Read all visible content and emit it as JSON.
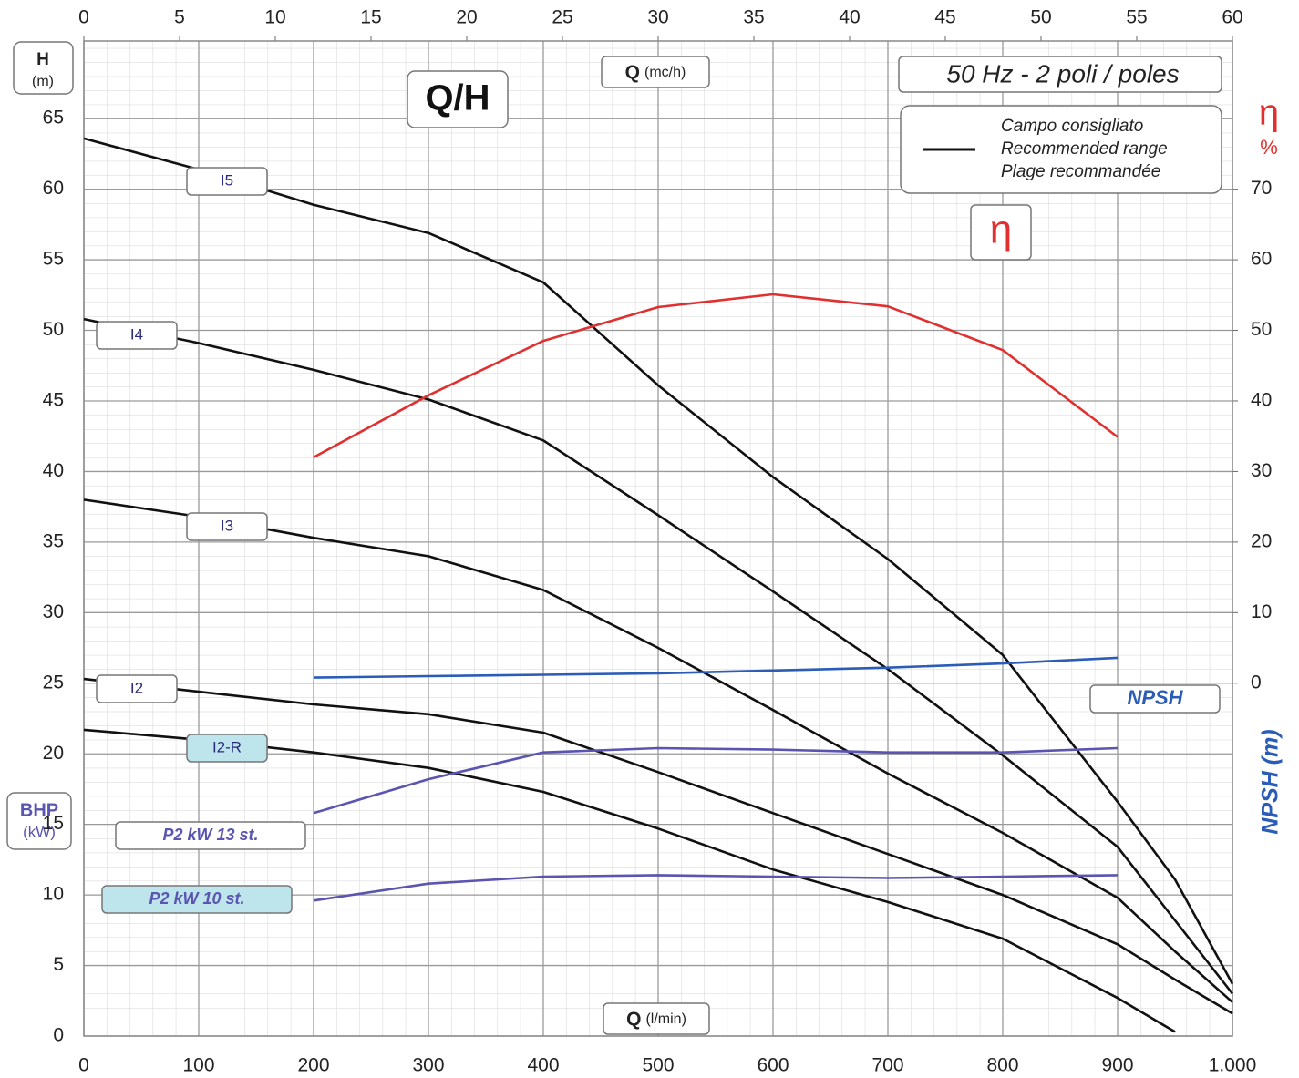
{
  "chart_data": {
    "type": "line",
    "title": "Q/H",
    "subtitle": "50 Hz - 2 poli / poles",
    "legend": {
      "lines": [
        "Campo consigliato",
        "Recommended range",
        "Plage recommandée"
      ],
      "color": "#111111"
    },
    "x_label": {
      "text": "Q",
      "unit": "(l/min)"
    },
    "x2_label": {
      "text": "Q",
      "unit": "(mc/h)"
    },
    "y_label": {
      "text": "H",
      "unit": "(m)"
    },
    "y2_label": {
      "text": "η",
      "unit": "%"
    },
    "bhp_label": {
      "text": "BHP",
      "unit": "(kW)"
    },
    "npsh_label": "NPSH (m)",
    "x": [
      0,
      100,
      200,
      300,
      400,
      500,
      600,
      700,
      800,
      900,
      950,
      1000
    ],
    "xlim": [
      0,
      1000
    ],
    "xticks": [
      0,
      100,
      200,
      300,
      400,
      500,
      600,
      700,
      800,
      900,
      {
        "value": 1000,
        "label": "1.000"
      }
    ],
    "x2lim": [
      0,
      60
    ],
    "x2ticks": [
      0,
      5,
      10,
      15,
      20,
      25,
      30,
      35,
      40,
      45,
      50,
      55,
      60
    ],
    "ylim": [
      0,
      70.5
    ],
    "yticks": [
      0,
      5,
      10,
      15,
      20,
      25,
      30,
      35,
      40,
      45,
      50,
      55,
      60,
      65
    ],
    "y2lim": [
      -50,
      91
    ],
    "y2ticks": [
      0,
      10,
      20,
      30,
      40,
      50,
      60,
      70
    ],
    "grid": true,
    "series": [
      {
        "name": "I5",
        "color": "#111111",
        "values": [
          63.6,
          61.4,
          58.9,
          56.9,
          53.4,
          46.1,
          39.6,
          33.8,
          27.0,
          16.6,
          11.1,
          3.7
        ]
      },
      {
        "name": "I4",
        "color": "#111111",
        "values": [
          50.8,
          49.1,
          47.2,
          45.1,
          42.2,
          36.9,
          31.5,
          26.0,
          19.9,
          13.4,
          8.2,
          3.0
        ]
      },
      {
        "name": "I3",
        "color": "#111111",
        "values": [
          38.0,
          36.8,
          35.3,
          34.0,
          31.6,
          27.5,
          23.1,
          18.6,
          14.4,
          9.8,
          6.0,
          2.4
        ]
      },
      {
        "name": "I2",
        "color": "#111111",
        "values": [
          25.3,
          24.4,
          23.5,
          22.8,
          21.5,
          18.7,
          15.8,
          12.9,
          10.0,
          6.5,
          4.0,
          1.6
        ]
      },
      {
        "name": "I2-R",
        "color": "#111111",
        "values": [
          21.7,
          21.0,
          20.1,
          19.0,
          17.3,
          14.7,
          11.8,
          9.5,
          6.9,
          2.7,
          0.3,
          null
        ]
      },
      {
        "name": "η",
        "color": "#e03030",
        "axis": "y2",
        "values": [
          null,
          null,
          32.0,
          40.8,
          48.5,
          53.3,
          55.1,
          53.4,
          47.2,
          34.9,
          null,
          null
        ]
      },
      {
        "name": "NPSH",
        "color": "#2a5cb8",
        "values": [
          null,
          null,
          25.4,
          25.5,
          25.6,
          25.7,
          25.9,
          26.1,
          26.4,
          26.8,
          null,
          null
        ]
      },
      {
        "name": "P2 kW 13 st.",
        "color": "#5a55b0",
        "values": [
          null,
          null,
          15.8,
          18.2,
          20.1,
          20.4,
          20.3,
          20.1,
          20.1,
          20.4,
          null,
          null
        ]
      },
      {
        "name": "P2 kW 10 st.",
        "color": "#5a55b0",
        "values": [
          null,
          null,
          9.6,
          10.8,
          11.3,
          11.4,
          11.3,
          11.2,
          11.3,
          11.4,
          null,
          null
        ]
      }
    ]
  }
}
